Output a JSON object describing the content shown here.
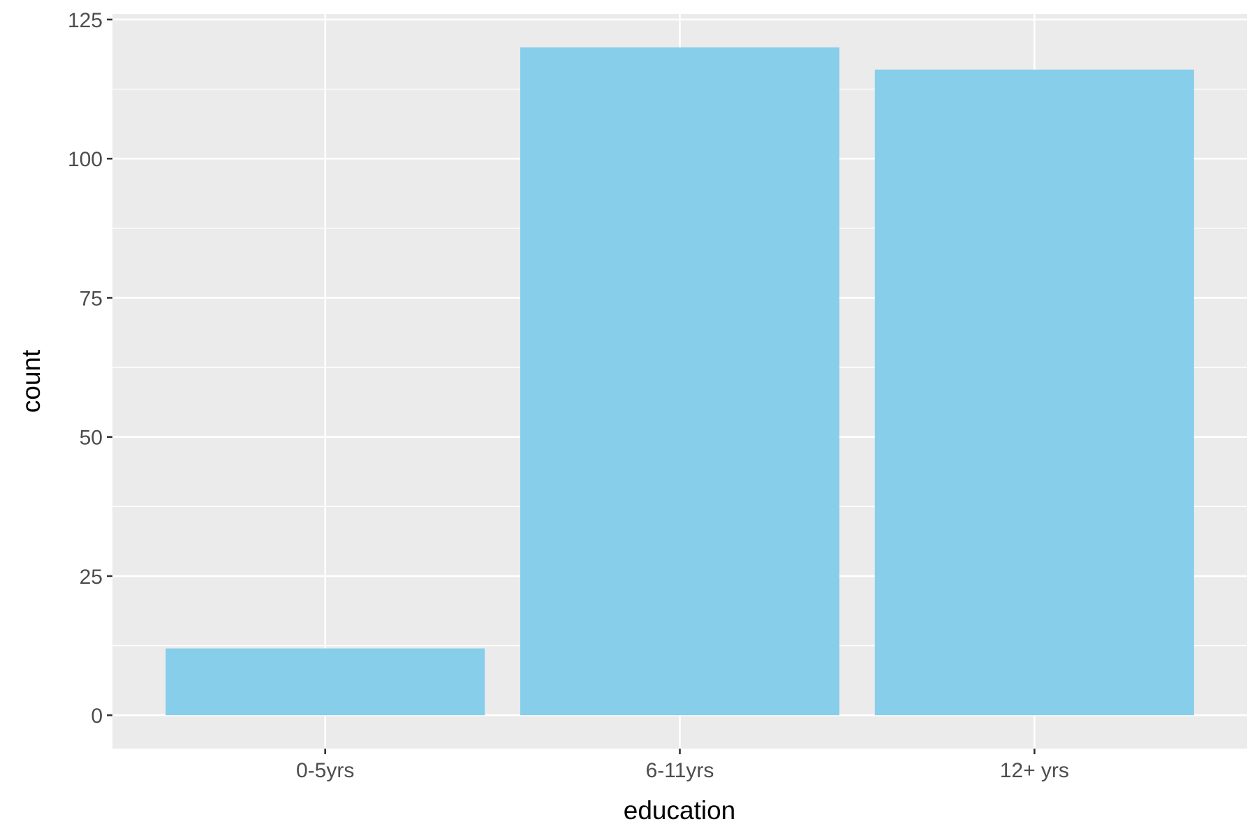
{
  "chart_data": {
    "type": "bar",
    "categories": [
      "0-5yrs",
      "6-11yrs",
      "12+ yrs"
    ],
    "values": [
      12,
      120,
      116
    ],
    "title": "",
    "xlabel": "education",
    "ylabel": "count",
    "ylim": [
      -6,
      126
    ],
    "yticks": [
      0,
      25,
      50,
      75,
      100,
      125
    ],
    "grid": true,
    "bar_color": "#87CEEA",
    "panel_color": "#EBEBEB"
  }
}
